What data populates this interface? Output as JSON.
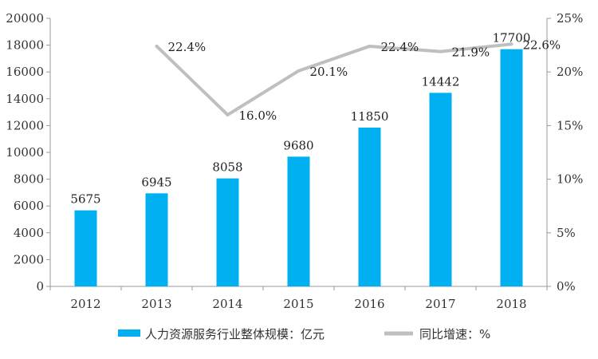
{
  "chart_data": {
    "type": "bar",
    "categories": [
      "2012",
      "2013",
      "2014",
      "2015",
      "2016",
      "2017",
      "2018"
    ],
    "series": [
      {
        "name": "人力资源服务行业整体规模：亿元",
        "type": "bar",
        "axis": "left",
        "values": [
          5675,
          6945,
          8058,
          9680,
          11850,
          14442,
          17700
        ],
        "labels": [
          "5675",
          "6945",
          "8058",
          "9680",
          "11850",
          "14442",
          "17700"
        ],
        "color": "#00b0f0"
      },
      {
        "name": "同比增速：%",
        "type": "line",
        "axis": "right",
        "values": [
          null,
          22.4,
          16.0,
          20.1,
          22.4,
          21.9,
          22.6
        ],
        "labels": [
          "",
          "22.4%",
          "16.0%",
          "20.1%",
          "22.4%",
          "21.9%",
          "22.6%"
        ],
        "color": "#bfbfbf"
      }
    ],
    "y_left": {
      "lim": [
        0,
        20000
      ],
      "ticks": [
        "0",
        "2000",
        "4000",
        "6000",
        "8000",
        "10000",
        "12000",
        "14000",
        "16000",
        "18000",
        "20000"
      ]
    },
    "y_right": {
      "lim": [
        0,
        25
      ],
      "ticks": [
        "0%",
        "5%",
        "10%",
        "15%",
        "20%",
        "25%"
      ]
    },
    "grid": false,
    "legend_position": "bottom"
  }
}
